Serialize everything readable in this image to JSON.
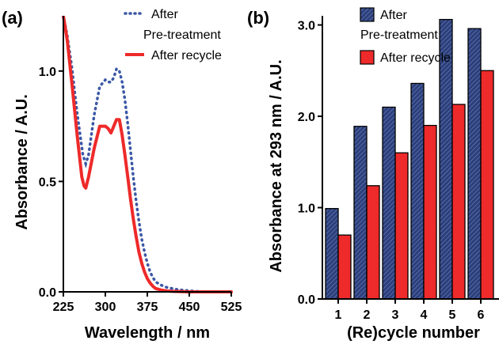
{
  "colors": {
    "after_pretreatment": "#3b57a6",
    "after_recycle": "#ee2a2a",
    "bar_pretreatment_fill": "#2c3f7a",
    "axis": "#000000"
  },
  "chart_data": [
    {
      "type": "line",
      "panel_label": "(a)",
      "xlabel": "Wavelength / nm",
      "ylabel": "Absorbance / A.U.",
      "xlim": [
        225,
        525
      ],
      "ylim": [
        0,
        1.25
      ],
      "xticks": [
        "225",
        "300",
        "375",
        "450",
        "525"
      ],
      "yticks": [
        "0.0",
        "0.5",
        "1.0"
      ],
      "grid": false,
      "legend_position": "top-right",
      "legend": [
        "After",
        "Pre-treatment",
        "After recycle"
      ],
      "series": [
        {
          "name": "After Pre-treatment",
          "style": "dotted",
          "x": [
            225,
            232,
            240,
            250,
            260,
            265,
            270,
            280,
            290,
            300,
            305,
            310,
            315,
            320,
            325,
            330,
            335,
            340,
            345,
            350,
            355,
            360,
            365,
            370,
            375,
            380,
            385,
            390,
            400,
            410,
            420,
            430,
            450,
            475,
            500,
            525
          ],
          "y": [
            1.25,
            1.16,
            1.02,
            0.8,
            0.62,
            0.58,
            0.62,
            0.8,
            0.93,
            0.96,
            0.95,
            0.95,
            0.97,
            1.01,
            1.0,
            0.95,
            0.87,
            0.76,
            0.64,
            0.52,
            0.41,
            0.32,
            0.24,
            0.18,
            0.13,
            0.09,
            0.065,
            0.045,
            0.03,
            0.02,
            0.015,
            0.01,
            0.005,
            0.0,
            0.0,
            0.0
          ]
        },
        {
          "name": "After recycle",
          "style": "solid",
          "x": [
            225,
            232,
            240,
            250,
            258,
            262,
            265,
            270,
            280,
            290,
            300,
            305,
            310,
            315,
            320,
            325,
            330,
            335,
            340,
            345,
            350,
            355,
            360,
            365,
            370,
            375,
            380,
            385,
            390,
            400,
            410,
            420,
            450,
            475,
            500,
            525
          ],
          "y": [
            1.25,
            1.14,
            0.95,
            0.7,
            0.52,
            0.48,
            0.47,
            0.52,
            0.65,
            0.75,
            0.75,
            0.74,
            0.72,
            0.75,
            0.78,
            0.78,
            0.71,
            0.62,
            0.52,
            0.42,
            0.33,
            0.25,
            0.18,
            0.13,
            0.09,
            0.06,
            0.04,
            0.025,
            0.015,
            0.008,
            0.004,
            0.002,
            0.0,
            0.0,
            0.0,
            0.0
          ]
        }
      ]
    },
    {
      "type": "bar",
      "panel_label": "(b)",
      "xlabel": "(Re)cycle number",
      "ylabel": "Absorbance at 293 nm / A.U.",
      "ylim": [
        0,
        3.1
      ],
      "yticks": [
        "0.0",
        "1.0",
        "2.0",
        "3.0"
      ],
      "categories": [
        "1",
        "2",
        "3",
        "4",
        "5",
        "6"
      ],
      "grid": false,
      "legend_position": "top-left",
      "legend": [
        "After",
        "Pre-treatment",
        "After recycle"
      ],
      "series": [
        {
          "name": "After Pre-treatment",
          "pattern": "hatched",
          "values": [
            0.99,
            1.89,
            2.1,
            2.36,
            3.06,
            2.96
          ]
        },
        {
          "name": "After recycle",
          "pattern": "solid",
          "values": [
            0.7,
            1.24,
            1.6,
            1.9,
            2.13,
            2.5
          ]
        }
      ]
    }
  ]
}
